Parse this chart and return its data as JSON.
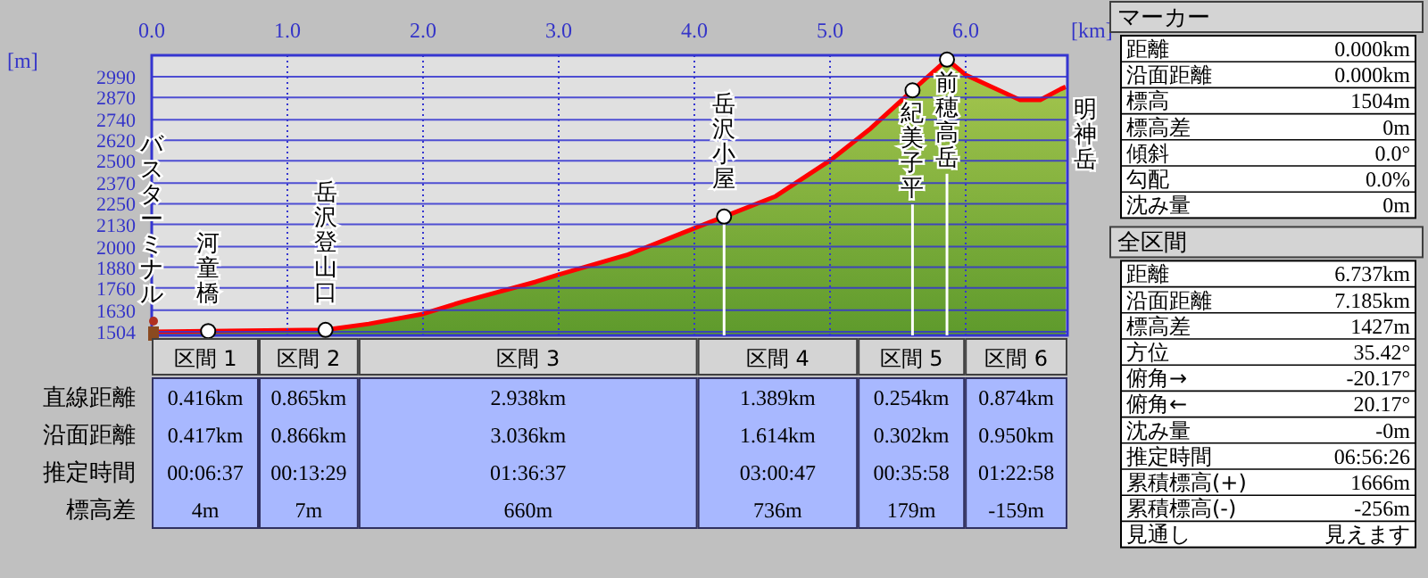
{
  "chart_data": [
    {
      "type": "area",
      "xlabel": "[km]",
      "ylabel": "[m]",
      "x": [
        0,
        0.416,
        1.281,
        1.6,
        2.0,
        2.3,
        2.83,
        3.0,
        3.5,
        4.0,
        4.219,
        4.6,
        5.0,
        5.3,
        5.608,
        5.862,
        6.0,
        6.2,
        6.4,
        6.55,
        6.7,
        6.737
      ],
      "series": [
        {
          "color": "#5e9a2c",
          "values": [
            1504,
            1508,
            1515,
            1550,
            1608,
            1681,
            1795,
            1837,
            1951,
            2107,
            2175,
            2294,
            2502,
            2689,
            2911,
            3090,
            3001,
            2928,
            2855,
            2855,
            2918,
            2931
          ]
        }
      ],
      "xlim": [
        0,
        6.75
      ],
      "xticks": [
        {
          "value": 0,
          "label": "0.0"
        },
        {
          "value": 1,
          "label": "1.0"
        },
        {
          "value": 2,
          "label": "2.0"
        },
        {
          "value": 3,
          "label": "3.0"
        },
        {
          "value": 4,
          "label": "4.0"
        },
        {
          "value": 5,
          "label": "5.0"
        },
        {
          "value": 6,
          "label": "6.0"
        }
      ],
      "ylim": [
        1483,
        3115
      ],
      "yticks": [
        1504,
        1630,
        1760,
        1880,
        2000,
        2130,
        2250,
        2370,
        2500,
        2620,
        2740,
        2870,
        2990
      ],
      "grid": true,
      "ref_lines": [
        {
          "axis": "x",
          "value": 4.219,
          "color": "#ffffff"
        },
        {
          "axis": "x",
          "value": 5.608,
          "color": "#ffffff"
        },
        {
          "axis": "x",
          "value": 5.862,
          "color": "#ffffff"
        }
      ],
      "annotations": [
        {
          "text": "バスターミナル",
          "x": 0,
          "y": 1504
        },
        {
          "text": "河童橋",
          "x": 0.416,
          "y": 1508
        },
        {
          "text": "岳沢登山口",
          "x": 1.281,
          "y": 1515
        },
        {
          "text": "岳沢小屋",
          "x": 4.219,
          "y": 2175
        },
        {
          "text": "紀美子平",
          "x": 5.608,
          "y": 2911
        },
        {
          "text": "前穂高岳",
          "x": 5.862,
          "y": 3090
        },
        {
          "text": "明神岳",
          "x": 6.737,
          "y": 2931
        }
      ]
    },
    {
      "type": "other",
      "categories": [
        "区間 1",
        "区間 2",
        "区間 3",
        "区間 4",
        "区間 5",
        "区間 6"
      ],
      "y_categories": [
        "直線距離",
        "沿面距離",
        "推定時間",
        "標高差"
      ],
      "cell_labels": [
        [
          "0.416km",
          "0.865km",
          "2.938km",
          "1.389km",
          "0.254km",
          "0.874km"
        ],
        [
          "0.417km",
          "0.866km",
          "3.036km",
          "1.614km",
          "0.302km",
          "0.950km"
        ],
        [
          "00:06:37",
          "00:13:29",
          "01:36:37",
          "03:00:47",
          "00:35:58",
          "01:22:58"
        ],
        [
          "4m",
          "7m",
          "660m",
          "736m",
          "179m",
          "-159m"
        ]
      ]
    },
    {
      "type": "other",
      "title": "マーカー",
      "y_categories": [
        "距離",
        "沿面距離",
        "標高",
        "標高差",
        "傾斜",
        "勾配",
        "沈み量"
      ],
      "cell_labels": [
        [
          "0.000km"
        ],
        [
          "0.000km"
        ],
        [
          "1504m"
        ],
        [
          "0m"
        ],
        [
          "0.0°"
        ],
        [
          "0.0%"
        ],
        [
          "0m"
        ]
      ]
    },
    {
      "type": "other",
      "title": "全区間",
      "y_categories": [
        "距離",
        "沿面距離",
        "標高差",
        "方位",
        "俯角→",
        "俯角←",
        "沈み量",
        "推定時間",
        "累積標高(+)",
        "累積標高(-)",
        "見通し"
      ],
      "cell_labels": [
        [
          "6.737km"
        ],
        [
          "7.185km"
        ],
        [
          "1427m"
        ],
        [
          "35.42°"
        ],
        [
          "-20.17°"
        ],
        [
          "20.17°"
        ],
        [
          "-0m"
        ],
        [
          "06:56:26"
        ],
        [
          "1666m"
        ],
        [
          "-256m"
        ],
        [
          "見えます"
        ]
      ]
    }
  ]
}
